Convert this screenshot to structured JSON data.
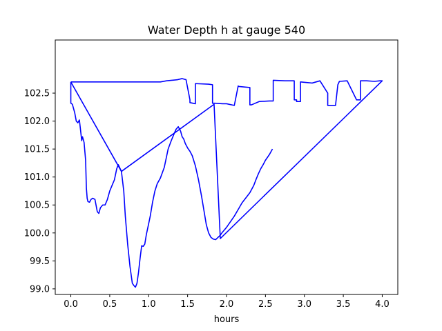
{
  "chart_data": {
    "type": "line",
    "title": "Water Depth h at gauge 540",
    "xlabel": "hours",
    "ylabel": "",
    "xlim": [
      -0.2,
      4.2
    ],
    "ylim": [
      98.9,
      103.45
    ],
    "grid": false,
    "x_ticks": [
      0.0,
      0.5,
      1.0,
      1.5,
      2.0,
      2.5,
      3.0,
      3.5,
      4.0
    ],
    "x_tick_labels": [
      "0.0",
      "0.5",
      "1.0",
      "1.5",
      "2.0",
      "2.5",
      "3.0",
      "3.5",
      "4.0"
    ],
    "y_ticks": [
      99.0,
      99.5,
      100.0,
      100.5,
      101.0,
      101.5,
      102.0,
      102.5
    ],
    "y_tick_labels": [
      "99.0",
      "99.5",
      "100.0",
      "100.5",
      "101.0",
      "101.5",
      "102.0",
      "102.5"
    ],
    "series": [
      {
        "color": "#0000ff",
        "x": [
          0.0,
          0.0,
          0.02,
          0.05,
          0.07,
          0.09,
          0.11,
          0.12,
          0.14,
          0.15,
          0.17,
          0.19,
          0.2,
          0.21,
          0.22,
          0.24,
          0.26,
          0.28,
          0.31,
          0.34,
          0.36,
          0.38,
          0.41,
          0.44,
          0.47,
          0.5,
          0.53,
          0.56,
          0.59,
          0.61,
          0.63,
          0.65,
          0.68,
          0.7,
          0.73,
          0.76,
          0.79,
          0.81,
          0.83,
          0.85,
          0.87,
          0.89,
          0.91,
          0.93,
          0.95,
          0.97,
          0.99,
          1.02,
          1.05,
          1.08,
          1.11,
          1.15,
          1.2,
          1.25,
          1.29,
          1.32,
          1.35,
          1.38,
          1.41,
          1.43,
          1.45,
          1.47,
          1.5,
          1.53,
          1.56,
          1.6,
          1.64,
          1.68,
          1.71,
          1.74,
          1.77,
          1.8,
          1.83,
          1.86,
          1.89,
          1.92,
          1.94,
          1.97,
          2.0,
          2.05,
          2.1,
          2.15,
          2.2,
          2.25,
          2.3,
          2.35,
          2.38,
          2.41,
          2.44,
          2.47,
          2.5,
          2.55,
          2.59
        ],
        "y": [
          102.7,
          102.32,
          102.3,
          102.15,
          102.0,
          101.97,
          102.02,
          101.9,
          101.65,
          101.72,
          101.62,
          101.3,
          100.8,
          100.62,
          100.56,
          100.55,
          100.6,
          100.62,
          100.6,
          100.38,
          100.35,
          100.45,
          100.5,
          100.5,
          100.6,
          100.75,
          100.85,
          100.95,
          101.15,
          101.22,
          101.16,
          101.1,
          100.75,
          100.3,
          99.8,
          99.4,
          99.1,
          99.06,
          99.03,
          99.1,
          99.3,
          99.55,
          99.77,
          99.76,
          99.8,
          99.97,
          100.1,
          100.3,
          100.55,
          100.75,
          100.88,
          100.98,
          101.17,
          101.5,
          101.65,
          101.75,
          101.85,
          101.9,
          101.82,
          101.72,
          101.68,
          101.6,
          101.52,
          101.46,
          101.38,
          101.2,
          100.95,
          100.65,
          100.4,
          100.15,
          100.0,
          99.92,
          99.89,
          99.88,
          99.92,
          99.96,
          100.0,
          100.05,
          100.1,
          100.2,
          100.3,
          100.42,
          100.54,
          100.63,
          100.72,
          100.85,
          100.96,
          101.06,
          101.15,
          101.22,
          101.3,
          101.4,
          101.5
        ]
      },
      {
        "color": "#0000ff",
        "x": [
          0.0,
          0.65,
          1.84,
          1.92,
          4.0,
          3.97,
          3.9,
          3.8,
          3.75,
          3.72,
          3.72,
          3.67,
          3.55,
          3.45,
          3.43,
          3.4,
          3.3,
          3.3,
          3.2,
          3.1,
          2.95,
          2.95,
          2.9,
          2.9,
          2.87,
          2.87,
          2.75,
          2.6,
          2.6,
          2.55,
          2.42,
          2.32,
          2.3,
          2.3,
          2.15,
          2.15,
          2.1,
          2.0,
          1.95,
          1.85,
          1.82,
          1.82,
          1.77,
          1.6,
          1.6,
          1.53,
          1.53,
          1.48,
          1.43,
          1.37,
          1.23,
          1.15,
          0.0
        ],
        "y": [
          102.7,
          101.1,
          102.3,
          99.9,
          102.72,
          102.72,
          102.71,
          102.72,
          102.72,
          102.72,
          102.38,
          102.38,
          102.72,
          102.71,
          102.65,
          102.28,
          102.28,
          102.5,
          102.72,
          102.68,
          102.7,
          102.35,
          102.35,
          102.38,
          102.38,
          102.72,
          102.72,
          102.73,
          102.36,
          102.36,
          102.35,
          102.29,
          102.29,
          102.6,
          102.62,
          102.63,
          102.28,
          102.31,
          102.31,
          102.32,
          102.32,
          102.65,
          102.66,
          102.67,
          102.31,
          102.33,
          102.38,
          102.74,
          102.76,
          102.74,
          102.72,
          102.7,
          102.7
        ]
      }
    ]
  }
}
